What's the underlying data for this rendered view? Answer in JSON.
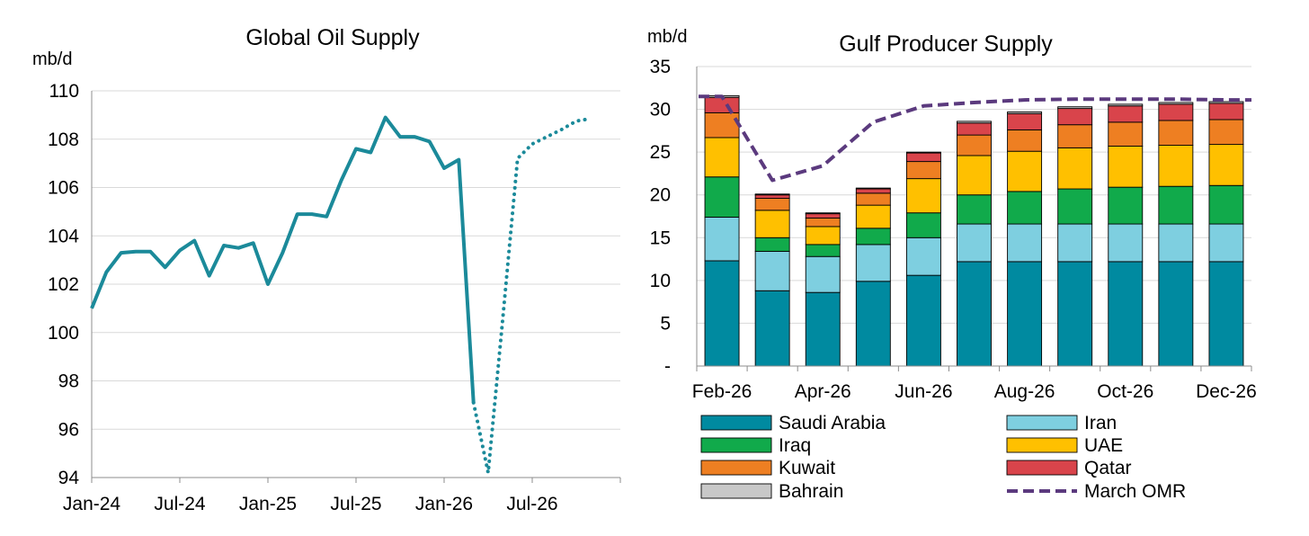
{
  "colors": {
    "teal_line": "#1b8a9a",
    "grid": "#d9d9d9",
    "axis": "#8c8c8c",
    "omr_line": "#5b3a7e"
  },
  "chart_data": [
    {
      "type": "line",
      "title": "Global Oil Supply",
      "ylabel": "mb/d",
      "xlabel": "",
      "ylim": [
        94,
        110
      ],
      "yticks": [
        94,
        96,
        98,
        100,
        102,
        104,
        106,
        108,
        110
      ],
      "xlim": [
        "2024-01",
        "2026-12"
      ],
      "xtick_labels": [
        {
          "x": "2024-01",
          "label": "Jan-24"
        },
        {
          "x": "2024-07",
          "label": "Jul-24"
        },
        {
          "x": "2025-01",
          "label": "Jan-25"
        },
        {
          "x": "2025-07",
          "label": "Jul-25"
        },
        {
          "x": "2026-01",
          "label": "Jan-26"
        },
        {
          "x": "2026-07",
          "label": "Jul-26"
        }
      ],
      "grid": true,
      "series": [
        {
          "style": "solid",
          "color": "#1b8a9a",
          "points": [
            {
              "x": "2024-01",
              "y": 101.0
            },
            {
              "x": "2024-02",
              "y": 102.5
            },
            {
              "x": "2024-03",
              "y": 103.3
            },
            {
              "x": "2024-04",
              "y": 103.35
            },
            {
              "x": "2024-05",
              "y": 103.35
            },
            {
              "x": "2024-06",
              "y": 102.7
            },
            {
              "x": "2024-07",
              "y": 103.4
            },
            {
              "x": "2024-08",
              "y": 103.8
            },
            {
              "x": "2024-09",
              "y": 102.35
            },
            {
              "x": "2024-10",
              "y": 103.6
            },
            {
              "x": "2024-11",
              "y": 103.5
            },
            {
              "x": "2024-12",
              "y": 103.7
            },
            {
              "x": "2025-01",
              "y": 102.0
            },
            {
              "x": "2025-02",
              "y": 103.3
            },
            {
              "x": "2025-03",
              "y": 104.9
            },
            {
              "x": "2025-04",
              "y": 104.9
            },
            {
              "x": "2025-05",
              "y": 104.8
            },
            {
              "x": "2025-06",
              "y": 106.3
            },
            {
              "x": "2025-07",
              "y": 107.6
            },
            {
              "x": "2025-08",
              "y": 107.45
            },
            {
              "x": "2025-09",
              "y": 108.9
            },
            {
              "x": "2025-10",
              "y": 108.1
            },
            {
              "x": "2025-11",
              "y": 108.1
            },
            {
              "x": "2025-12",
              "y": 107.9
            },
            {
              "x": "2026-01",
              "y": 106.8
            },
            {
              "x": "2026-02",
              "y": 107.15
            },
            {
              "x": "2026-03",
              "y": 97.1
            }
          ]
        },
        {
          "style": "dotted",
          "color": "#1b8a9a",
          "points": [
            {
              "x": "2026-03",
              "y": 97.1
            },
            {
              "x": "2026-04",
              "y": 94.2
            },
            {
              "x": "2026-05",
              "y": 100.6
            },
            {
              "x": "2026-06",
              "y": 107.2
            },
            {
              "x": "2026-07",
              "y": 107.8
            },
            {
              "x": "2026-08",
              "y": 108.1
            },
            {
              "x": "2026-09",
              "y": 108.4
            },
            {
              "x": "2026-10",
              "y": 108.75
            },
            {
              "x": "2026-11",
              "y": 108.85
            }
          ]
        }
      ]
    },
    {
      "type": "bar",
      "stacked": true,
      "title": "Gulf Producer Supply",
      "ylabel": "mb/d",
      "xlabel": "",
      "ylim": [
        0,
        35
      ],
      "yticks": [
        {
          "value": 0,
          "label": "-"
        },
        {
          "value": 5,
          "label": "5"
        },
        {
          "value": 10,
          "label": "10"
        },
        {
          "value": 15,
          "label": "15"
        },
        {
          "value": 20,
          "label": "20"
        },
        {
          "value": 25,
          "label": "25"
        },
        {
          "value": 30,
          "label": "30"
        },
        {
          "value": 35,
          "label": "35"
        }
      ],
      "categories": [
        "Feb-26",
        "Mar-26",
        "Apr-26",
        "May-26",
        "Jun-26",
        "Jul-26",
        "Aug-26",
        "Sep-26",
        "Oct-26",
        "Nov-26",
        "Dec-26"
      ],
      "xtick_labels": [
        "Feb-26",
        "",
        "Apr-26",
        "",
        "Jun-26",
        "",
        "Aug-26",
        "",
        "Oct-26",
        "",
        "Dec-26"
      ],
      "grid": true,
      "legend_position": "bottom",
      "series": [
        {
          "name": "Saudi Arabia",
          "color": "#008aa0",
          "values": [
            12.3,
            8.8,
            8.6,
            9.9,
            10.6,
            12.2,
            12.2,
            12.2,
            12.2,
            12.2,
            12.2
          ]
        },
        {
          "name": "Iran",
          "color": "#7ecfe0",
          "values": [
            5.1,
            4.6,
            4.2,
            4.3,
            4.4,
            4.4,
            4.4,
            4.4,
            4.4,
            4.4,
            4.4
          ]
        },
        {
          "name": "Iraq",
          "color": "#11aa4b",
          "values": [
            4.7,
            1.6,
            1.4,
            1.9,
            2.9,
            3.4,
            3.8,
            4.1,
            4.3,
            4.4,
            4.5
          ]
        },
        {
          "name": "UAE",
          "color": "#ffc000",
          "values": [
            4.6,
            3.2,
            2.1,
            2.7,
            4.0,
            4.6,
            4.7,
            4.8,
            4.8,
            4.8,
            4.8
          ]
        },
        {
          "name": "Kuwait",
          "color": "#ee7f22",
          "values": [
            2.9,
            1.4,
            1.0,
            1.4,
            2.0,
            2.4,
            2.5,
            2.7,
            2.8,
            2.9,
            2.9
          ]
        },
        {
          "name": "Qatar",
          "color": "#d9444b",
          "values": [
            1.8,
            0.4,
            0.5,
            0.5,
            1.0,
            1.4,
            1.9,
            1.9,
            1.9,
            1.9,
            1.9
          ]
        },
        {
          "name": "Bahrain",
          "color": "#c8c8c8",
          "values": [
            0.2,
            0.1,
            0.1,
            0.1,
            0.1,
            0.2,
            0.2,
            0.2,
            0.2,
            0.2,
            0.2
          ]
        }
      ],
      "line_series": {
        "name": "March OMR",
        "style": "dashed",
        "color": "#5b3a7e",
        "values": [
          31.5,
          21.7,
          23.4,
          28.5,
          30.4,
          30.8,
          31.1,
          31.2,
          31.2,
          31.2,
          31.1
        ]
      }
    }
  ]
}
